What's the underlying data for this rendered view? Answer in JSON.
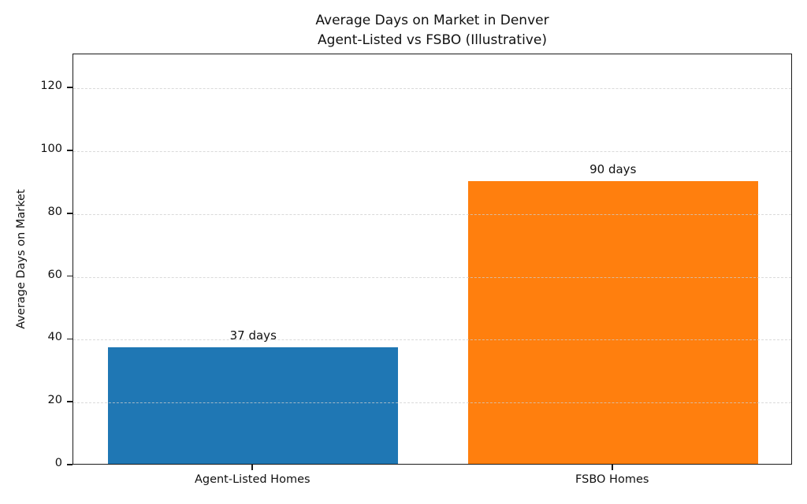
{
  "title": {
    "line1": "Average Days on Market in Denver",
    "line2": "Agent-Listed vs FSBO (Illustrative)"
  },
  "chart_data": {
    "type": "bar",
    "title": "Average Days on Market in Denver\nAgent-Listed vs FSBO (Illustrative)",
    "categories": [
      "Agent-Listed Homes",
      "FSBO Homes"
    ],
    "values": [
      37,
      90
    ],
    "bar_labels": [
      "37 days",
      "90 days"
    ],
    "bar_colors": [
      "#1f77b4",
      "#ff7f0e"
    ],
    "xlabel": "",
    "ylabel": "Average Days on Market",
    "yticks": [
      0,
      20,
      40,
      60,
      80,
      100,
      120
    ],
    "ylim": [
      0,
      130.8
    ],
    "grid": "horizontal-dashed",
    "legend_position": "none"
  }
}
